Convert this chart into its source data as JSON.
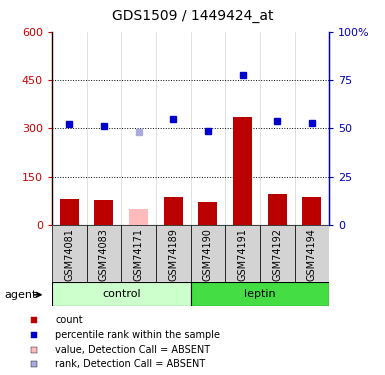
{
  "title": "GDS1509 / 1449424_at",
  "samples": [
    "GSM74081",
    "GSM74083",
    "GSM74171",
    "GSM74189",
    "GSM74190",
    "GSM74191",
    "GSM74192",
    "GSM74194"
  ],
  "bar_values": [
    82,
    78,
    50,
    88,
    70,
    335,
    95,
    88
  ],
  "bar_colors": [
    "#bb0000",
    "#bb0000",
    "#ffbbbb",
    "#bb0000",
    "#bb0000",
    "#bb0000",
    "#bb0000",
    "#bb0000"
  ],
  "dot_values": [
    315,
    308,
    290,
    328,
    293,
    465,
    322,
    317
  ],
  "dot_colors": [
    "#0000cc",
    "#0000cc",
    "#aaaadd",
    "#0000cc",
    "#0000cc",
    "#0000cc",
    "#0000cc",
    "#0000cc"
  ],
  "groups": [
    {
      "label": "control",
      "start": 0,
      "end": 3,
      "color": "#ccffcc"
    },
    {
      "label": "leptin",
      "start": 4,
      "end": 7,
      "color": "#44dd44"
    }
  ],
  "left_ylim": [
    0,
    600
  ],
  "right_ylim": [
    0,
    100
  ],
  "left_yticks": [
    0,
    150,
    300,
    450,
    600
  ],
  "right_yticks": [
    0,
    25,
    50,
    75,
    100
  ],
  "right_yticklabels": [
    "0",
    "25",
    "50",
    "75",
    "100%"
  ],
  "left_yticklabels": [
    "0",
    "150",
    "300",
    "450",
    "600"
  ],
  "left_tick_color": "#cc0000",
  "right_tick_color": "#0000bb",
  "grid_values": [
    150,
    300,
    450
  ],
  "agent_label": "agent",
  "legend_items": [
    {
      "label": "count",
      "color": "#bb0000"
    },
    {
      "label": "percentile rank within the sample",
      "color": "#0000cc"
    },
    {
      "label": "value, Detection Call = ABSENT",
      "color": "#ffbbbb"
    },
    {
      "label": "rank, Detection Call = ABSENT",
      "color": "#aaaadd"
    }
  ]
}
